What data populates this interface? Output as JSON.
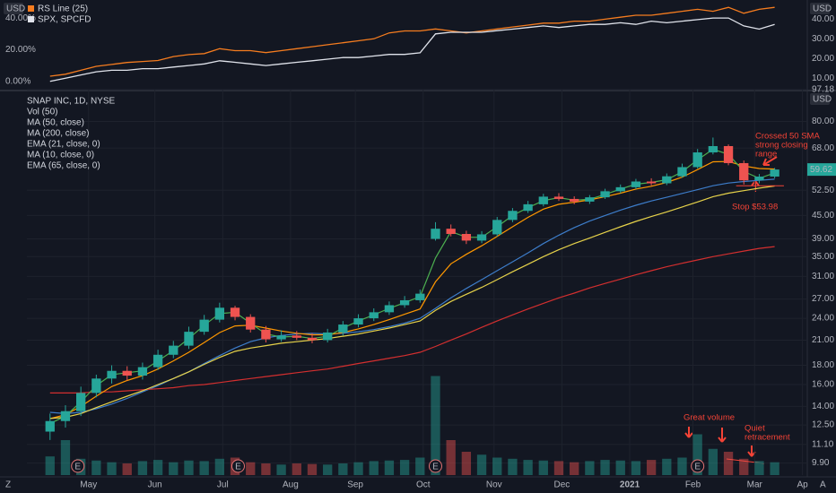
{
  "chart_data": [
    {
      "type": "line",
      "currency": "USD",
      "xlim": [
        -1.5,
        49
      ],
      "ylim": [
        -3,
        48
      ],
      "yticks": [
        {
          "value": 0,
          "label": "0.00%"
        },
        {
          "value": 20,
          "label": "20.00%"
        },
        {
          "value": 40,
          "label": "40.00%"
        }
      ],
      "y2lim": [
        6,
        47
      ],
      "y2ticks": [
        {
          "value": 10,
          "label": "10.00"
        },
        {
          "value": 20,
          "label": "20.00"
        },
        {
          "value": 30,
          "label": "30.00"
        },
        {
          "value": 40,
          "label": "40.00"
        }
      ],
      "series": [
        {
          "name": "RS Line (25)",
          "color": "#f57c1f",
          "axis": "y2",
          "values": [
            11,
            12,
            14,
            16,
            17,
            18,
            18.5,
            19,
            21,
            22,
            22.5,
            25,
            24,
            24,
            23,
            24,
            25,
            26,
            27,
            28,
            29,
            30,
            33,
            34,
            34,
            35,
            34,
            33,
            34,
            35,
            36,
            37,
            38,
            38,
            39,
            39,
            40,
            41,
            42,
            42,
            43,
            44,
            45,
            44,
            46,
            43,
            45,
            46
          ]
        },
        {
          "name": "SPX, SPCFD",
          "color": "#e0e3eb",
          "values": [
            0,
            2,
            4,
            6,
            7,
            7,
            8,
            8,
            9,
            10,
            11,
            13,
            12,
            11,
            10,
            11,
            12,
            13,
            14,
            15,
            15,
            16,
            17,
            17,
            18,
            30,
            31,
            31,
            31,
            32,
            33,
            34,
            35,
            34,
            35,
            36,
            36,
            37,
            36,
            38,
            37,
            38,
            39,
            40,
            40,
            35,
            33,
            36
          ]
        }
      ]
    },
    {
      "type": "candlestick",
      "title": "SNAP INC, 1D, NYSE",
      "currency": "USD",
      "log": true,
      "xlim": [
        -1.5,
        49
      ],
      "ylim": [
        9.3,
        97.18
      ],
      "yticks": [
        {
          "value": 9.9,
          "label": "9.90"
        },
        {
          "value": 11.1,
          "label": "11.10"
        },
        {
          "value": 12.5,
          "label": "12.50"
        },
        {
          "value": 14,
          "label": "14.00"
        },
        {
          "value": 16,
          "label": "16.00"
        },
        {
          "value": 18,
          "label": "18.00"
        },
        {
          "value": 21,
          "label": "21.00"
        },
        {
          "value": 24,
          "label": "24.00"
        },
        {
          "value": 27,
          "label": "27.00"
        },
        {
          "value": 31,
          "label": "31.00"
        },
        {
          "value": 35,
          "label": "35.00"
        },
        {
          "value": 39,
          "label": "39.00"
        },
        {
          "value": 45,
          "label": "45.00"
        },
        {
          "value": 52.5,
          "label": "52.50"
        },
        {
          "value": 68,
          "label": "68.00"
        },
        {
          "value": 80,
          "label": "80.00"
        },
        97.18
      ],
      "xticks": [
        {
          "value": 2.5,
          "label": "May"
        },
        {
          "value": 6.8,
          "label": "Jun"
        },
        {
          "value": 11.2,
          "label": "Jul"
        },
        {
          "value": 15.6,
          "label": "Aug"
        },
        {
          "value": 19.8,
          "label": "Sep"
        },
        {
          "value": 24.2,
          "label": "Oct"
        },
        {
          "value": 28.8,
          "label": "Nov"
        },
        {
          "value": 33.2,
          "label": "Dec"
        },
        {
          "value": 37.6,
          "label": "2021"
        },
        {
          "value": 41.7,
          "label": "Feb"
        },
        {
          "value": 45.7,
          "label": "Mar"
        },
        {
          "value": 48.8,
          "label": "Ap"
        }
      ],
      "up_color": "#26a69a",
      "down_color": "#ef5350",
      "open": [
        12.0,
        12.8,
        13.6,
        15.2,
        16.6,
        17.4,
        16.9,
        17.8,
        19.2,
        20.3,
        22.1,
        23.8,
        25.6,
        24.2,
        22.4,
        21.1,
        21.6,
        21.3,
        21.0,
        22.0,
        23.1,
        24.0,
        24.9,
        26.0,
        26.8,
        39.0,
        41.5,
        40.2,
        38.6,
        40.1,
        43.8,
        46.3,
        48.2,
        50.5,
        49.8,
        49.0,
        50.3,
        52.2,
        53.5,
        55.4,
        54.8,
        57.2,
        60.5,
        66.2,
        68.8,
        62.0,
        55.8,
        57.1
      ],
      "high": [
        13.4,
        14.1,
        15.8,
        17.0,
        18.0,
        17.9,
        18.3,
        19.8,
        20.9,
        22.8,
        24.5,
        26.4,
        25.9,
        24.6,
        22.9,
        22.3,
        22.2,
        21.9,
        22.5,
        23.6,
        24.6,
        25.5,
        26.6,
        27.5,
        28.6,
        43.2,
        42.6,
        41.0,
        40.9,
        44.6,
        47.1,
        49.2,
        51.4,
        51.6,
        50.6,
        51.0,
        53.0,
        54.4,
        56.3,
        56.5,
        58.2,
        61.8,
        67.6,
        72.5,
        69.5,
        63.0,
        58.0,
        60.2
      ],
      "low": [
        11.4,
        12.3,
        13.2,
        14.8,
        16.1,
        16.4,
        16.5,
        17.5,
        18.8,
        19.9,
        21.7,
        23.4,
        23.7,
        22.0,
        20.7,
        20.8,
        21.0,
        20.6,
        20.7,
        21.6,
        22.7,
        23.6,
        24.5,
        25.6,
        26.4,
        38.6,
        39.6,
        37.8,
        38.0,
        39.6,
        43.2,
        45.7,
        47.6,
        49.2,
        48.2,
        48.3,
        49.8,
        51.6,
        52.9,
        54.1,
        54.2,
        56.7,
        60.0,
        65.4,
        61.2,
        54.4,
        54.8,
        56.5
      ],
      "close": [
        12.8,
        13.6,
        15.2,
        16.6,
        17.4,
        16.9,
        17.8,
        19.2,
        20.3,
        22.1,
        23.8,
        25.6,
        24.2,
        22.4,
        21.1,
        21.6,
        21.3,
        21.0,
        22.0,
        23.1,
        24.0,
        24.9,
        26.0,
        26.8,
        27.9,
        41.5,
        40.2,
        38.6,
        40.1,
        43.8,
        46.3,
        48.2,
        50.5,
        49.8,
        49.0,
        50.3,
        52.2,
        53.5,
        55.4,
        54.8,
        57.2,
        60.5,
        66.2,
        68.8,
        62.0,
        55.8,
        57.1,
        59.62
      ],
      "volume_name": "Vol (50)",
      "volume_ylim": [
        0,
        200
      ],
      "volume": [
        32,
        60,
        28,
        25,
        22,
        20,
        24,
        26,
        22,
        25,
        24,
        28,
        30,
        22,
        20,
        18,
        20,
        19,
        18,
        20,
        22,
        24,
        25,
        26,
        30,
        170,
        60,
        40,
        35,
        30,
        28,
        26,
        25,
        24,
        22,
        24,
        26,
        25,
        24,
        26,
        28,
        30,
        70,
        45,
        40,
        28,
        24,
        22
      ],
      "series": [
        {
          "name": "MA (50, close)",
          "color": "#3d7dca",
          "values": [
            13.5,
            13.4,
            13.5,
            13.8,
            14.2,
            14.7,
            15.3,
            15.9,
            16.6,
            17.3,
            18.2,
            19.1,
            20.0,
            20.8,
            21.3,
            21.6,
            21.8,
            21.9,
            21.8,
            21.9,
            22.1,
            22.4,
            22.8,
            23.3,
            24.0,
            25.5,
            27.2,
            28.8,
            30.4,
            32.1,
            33.9,
            35.8,
            37.9,
            39.9,
            41.8,
            43.5,
            45.0,
            46.5,
            47.9,
            49.2,
            50.3,
            51.5,
            52.7,
            54.0,
            54.9,
            55.4,
            55.8,
            56.2
          ]
        },
        {
          "name": "MA (200, close)",
          "color": "#d32f2f",
          "values": [
            15.2,
            15.2,
            15.2,
            15.3,
            15.3,
            15.4,
            15.5,
            15.6,
            15.7,
            15.9,
            16.0,
            16.2,
            16.4,
            16.6,
            16.8,
            17.0,
            17.2,
            17.4,
            17.6,
            17.9,
            18.2,
            18.5,
            18.8,
            19.1,
            19.5,
            20.2,
            21.0,
            21.8,
            22.7,
            23.6,
            24.5,
            25.4,
            26.3,
            27.2,
            28.0,
            28.9,
            29.7,
            30.5,
            31.3,
            32.1,
            32.9,
            33.6,
            34.3,
            35.0,
            35.6,
            36.2,
            36.8,
            37.2
          ]
        },
        {
          "name": "EMA (21, close, 0)",
          "color": "#ff9800",
          "values": [
            13.0,
            13.3,
            14.0,
            14.9,
            15.8,
            16.4,
            16.9,
            17.6,
            18.5,
            19.5,
            20.7,
            22.0,
            22.9,
            23.0,
            22.6,
            22.2,
            21.9,
            21.7,
            21.7,
            22.0,
            22.5,
            23.1,
            23.8,
            24.6,
            25.4,
            30.0,
            33.5,
            35.5,
            37.4,
            39.6,
            42.0,
            44.5,
            46.8,
            48.2,
            48.8,
            49.5,
            50.5,
            51.6,
            52.9,
            53.8,
            55.1,
            56.9,
            59.6,
            62.5,
            62.6,
            60.9,
            60.0,
            59.8
          ]
        },
        {
          "name": "MA (10, close, 0)",
          "color": "#4caf50",
          "values": [
            12.6,
            13.2,
            14.4,
            15.9,
            17.0,
            17.2,
            17.4,
            18.5,
            19.7,
            21.2,
            23.0,
            24.7,
            24.9,
            23.3,
            21.8,
            21.4,
            21.5,
            21.2,
            21.5,
            22.6,
            23.6,
            24.5,
            25.5,
            26.4,
            27.4,
            34.7,
            40.8,
            39.4,
            39.4,
            42.0,
            45.0,
            47.2,
            49.3,
            50.2,
            49.4,
            49.7,
            51.2,
            52.9,
            54.5,
            55.1,
            56.0,
            58.8,
            63.3,
            67.5,
            65.4,
            58.9,
            56.5,
            58.4
          ]
        },
        {
          "name": "EMA (65, close, 0)",
          "color": "#e6d24a",
          "values": [
            13.0,
            13.1,
            13.4,
            13.9,
            14.4,
            14.9,
            15.4,
            16.0,
            16.6,
            17.3,
            18.1,
            18.9,
            19.6,
            20.0,
            20.3,
            20.6,
            20.8,
            21.0,
            21.2,
            21.5,
            21.8,
            22.2,
            22.6,
            23.1,
            23.6,
            25.2,
            26.6,
            27.8,
            29.0,
            30.4,
            31.9,
            33.4,
            35.0,
            36.5,
            37.9,
            39.2,
            40.6,
            42.0,
            43.4,
            44.7,
            46.0,
            47.4,
            48.9,
            50.5,
            51.6,
            52.4,
            53.2,
            53.9
          ]
        }
      ],
      "events": {
        "label": "E",
        "x": [
          1.8,
          12.2,
          25.0,
          42.0
        ]
      },
      "stop": {
        "value": 53.98,
        "label": "Stop $53.98"
      },
      "annotations": [
        {
          "lines": [
            "Crossed 50 SMA",
            "strong closing",
            "range"
          ]
        },
        {
          "lines": [
            "Great volume"
          ]
        },
        {
          "lines": [
            "Quiet",
            "retracement"
          ]
        }
      ],
      "buttons": [
        "Z",
        "A"
      ]
    }
  ]
}
